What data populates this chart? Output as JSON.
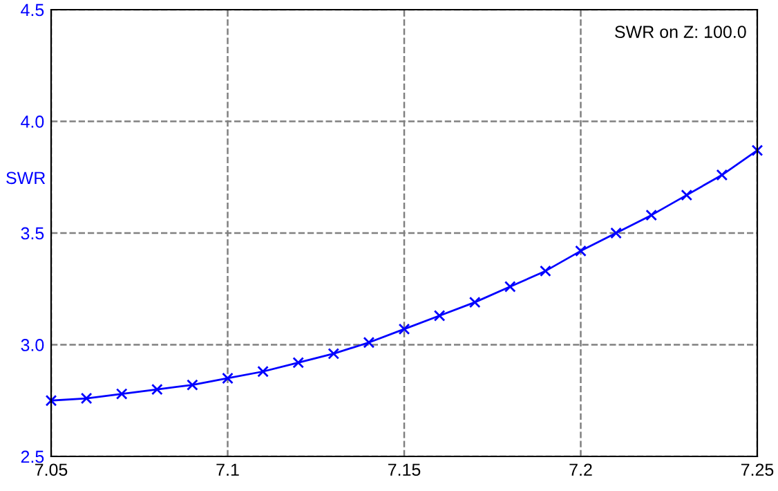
{
  "chart_data": {
    "type": "line",
    "ylabel": "SWR",
    "annotations": [
      "SWR on Z: 100.0"
    ],
    "x": [
      7.05,
      7.06,
      7.07,
      7.08,
      7.09,
      7.1,
      7.11,
      7.12,
      7.13,
      7.14,
      7.15,
      7.16,
      7.17,
      7.18,
      7.19,
      7.2,
      7.21,
      7.22,
      7.23,
      7.24,
      7.25
    ],
    "series": [
      {
        "color": "#0000ff",
        "values": [
          2.75,
          2.76,
          2.78,
          2.8,
          2.82,
          2.85,
          2.88,
          2.92,
          2.96,
          3.01,
          3.07,
          3.13,
          3.19,
          3.26,
          3.33,
          3.42,
          3.5,
          3.58,
          3.67,
          3.76,
          3.87
        ]
      }
    ],
    "xlim": [
      7.05,
      7.25
    ],
    "xticks": [
      {
        "value": 7.05,
        "label": "7.05"
      },
      {
        "value": 7.1,
        "label": "7.1"
      },
      {
        "value": 7.15,
        "label": "7.15"
      },
      {
        "value": 7.2,
        "label": "7.2"
      },
      {
        "value": 7.25,
        "label": "7.25"
      }
    ],
    "ylim": [
      2.5,
      4.5
    ],
    "yticks": [
      {
        "value": 2.5,
        "label": "2.5"
      },
      {
        "value": 3.0,
        "label": "3.0"
      },
      {
        "value": 3.5,
        "label": "3.5"
      },
      {
        "value": 4.0,
        "label": "4.0"
      },
      {
        "value": 4.5,
        "label": "4.5"
      }
    ],
    "grid": true,
    "marker": "cross",
    "line_style": "solid"
  }
}
